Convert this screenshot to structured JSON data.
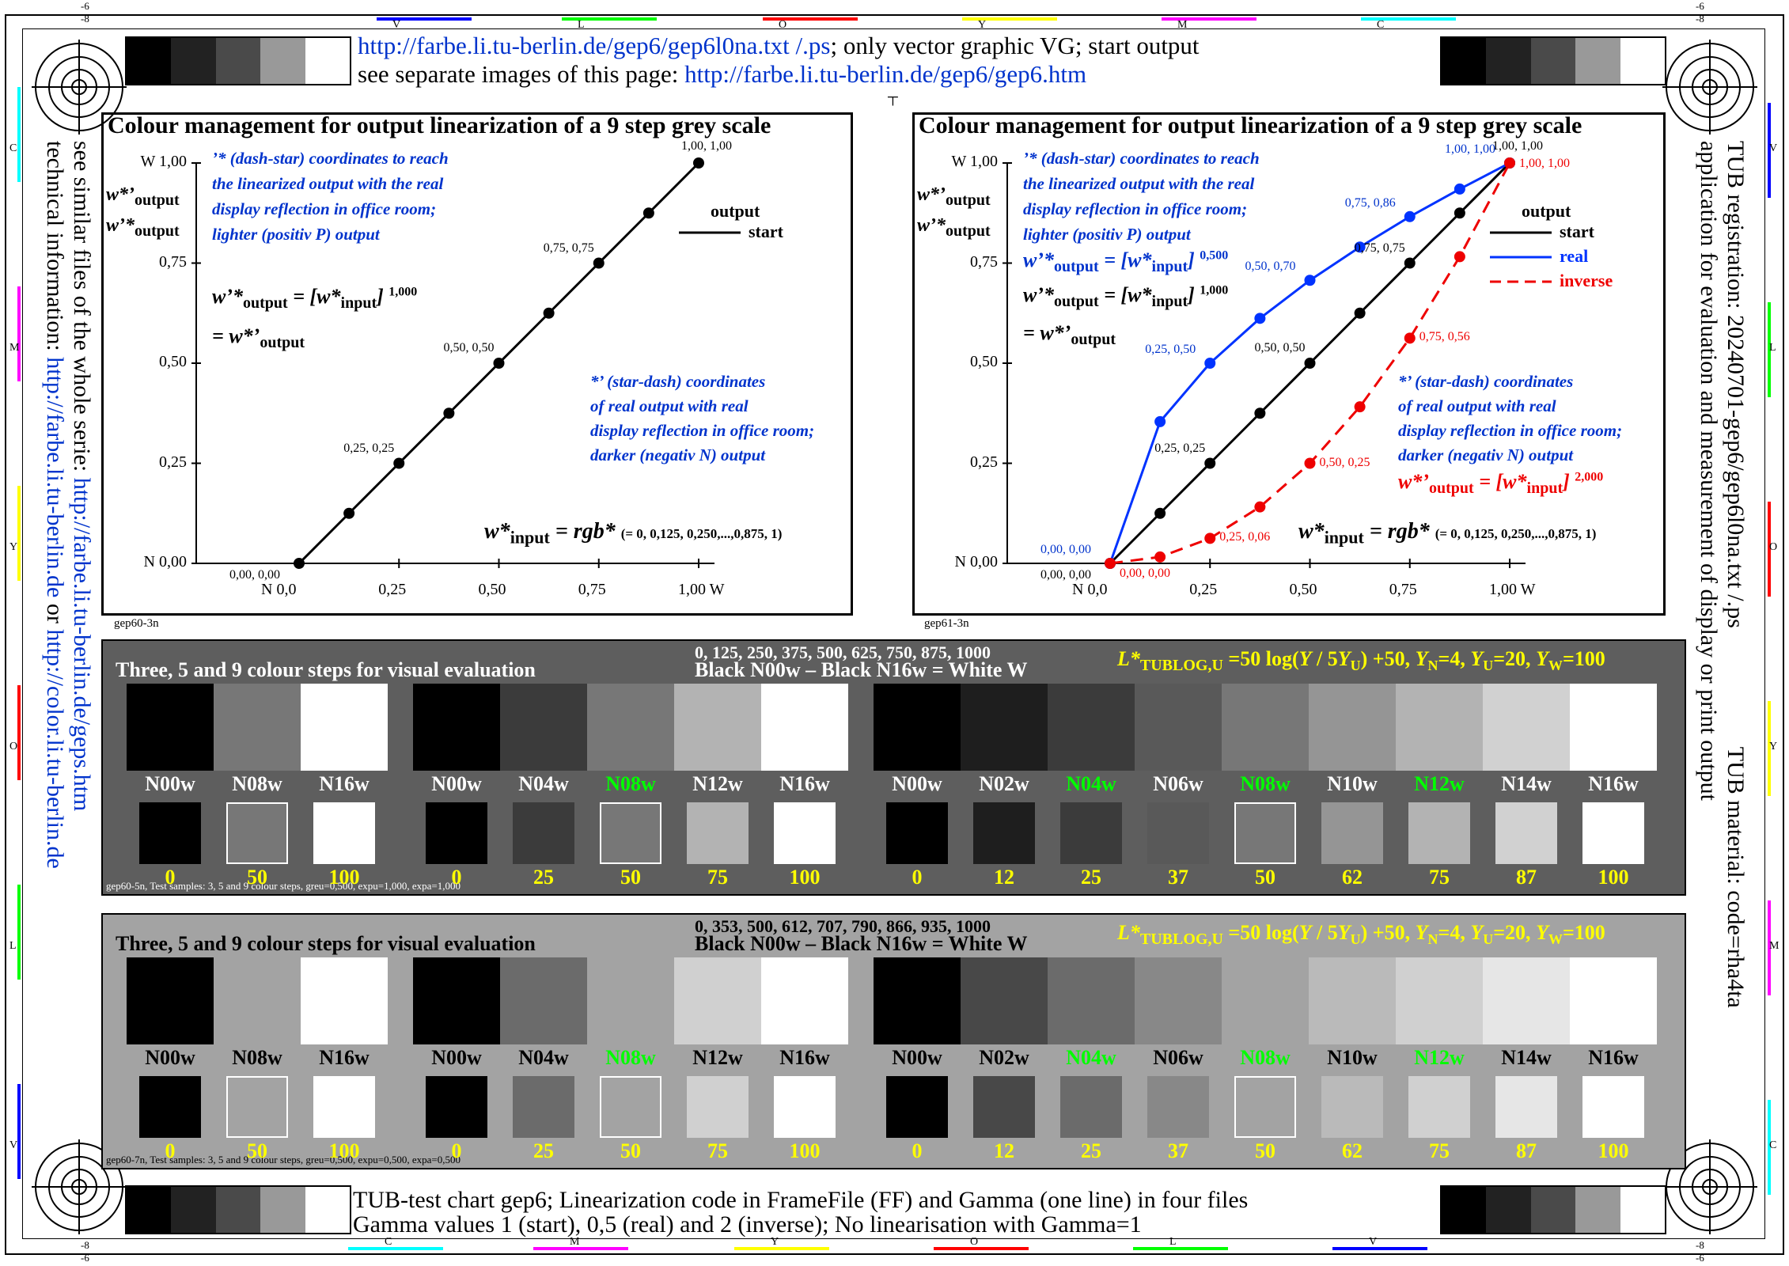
{
  "header": {
    "url_line_link": "http://farbe.li.tu-berlin.de/gep6/gep6l0na.txt /.ps",
    "url_line_rest": "; only vector graphic VG; start output",
    "sep_line_prefix": "see separate images of this page: ",
    "sep_line_link": "http://farbe.li.tu-berlin.de/gep6/gep6.htm"
  },
  "edge_letters_top": [
    "V",
    "L",
    "O",
    "Y",
    "M",
    "C"
  ],
  "edge_letters_bottom": [
    "C",
    "M",
    "Y",
    "O",
    "L",
    "V"
  ],
  "edge_letters_left": [
    "C",
    "M",
    "Y",
    "O",
    "L",
    "V"
  ],
  "edge_letters_right": [
    "V",
    "L",
    "O",
    "Y",
    "M",
    "C"
  ],
  "corner_marks": {
    "tl_top": "-6",
    "tl_bot": "-8",
    "tr_top": "-6",
    "tr_bot": "-8",
    "bl_top": "-8",
    "bl_bot": "-6",
    "br_top": "-8",
    "br_bot": "-6"
  },
  "left_side": {
    "line1_prefix": "see similar files of the whole serie: ",
    "line1_link": "http://farbe.li.tu-berlin.de/geps.htm",
    "line2_prefix": "technical information: ",
    "line2_link1": "http://farbe.li.tu-berlin.de",
    "line2_mid": " or ",
    "line2_link2": "http://color.li.tu-berlin.de"
  },
  "right_side": {
    "line1a": "TUB registration: 20240701-gep6/gep6l0na.txt /.ps",
    "line1b": "TUB material: code=rha4ta",
    "line2": "application for evaluation and measurement of display or print output"
  },
  "chart_data": [
    {
      "type": "line",
      "title": "Colour management for output linearization of a 9 step grey scale",
      "ylabel_top": "W 1,00",
      "y_ticks": [
        "N 0,00",
        "0,25",
        "0,50",
        "0,75",
        "W 1,00"
      ],
      "x_ticks": [
        "N  0,0",
        "0,25",
        "0,50",
        "0,75",
        "1,00  W"
      ],
      "xlim": [
        0,
        1
      ],
      "ylim": [
        0,
        1
      ],
      "series": [
        {
          "name": "start",
          "color": "#000000",
          "dash": false,
          "x": [
            0,
            0.125,
            0.25,
            0.375,
            0.5,
            0.625,
            0.75,
            0.875,
            1
          ],
          "y": [
            0,
            0.125,
            0.25,
            0.375,
            0.5,
            0.625,
            0.75,
            0.875,
            1
          ]
        }
      ],
      "point_labels": [
        {
          "x": 0,
          "y": 0,
          "text": "0,00, 0,00",
          "color": "#000000"
        },
        {
          "x": 0.25,
          "y": 0.25,
          "text": "0,25, 0,25",
          "color": "#000000"
        },
        {
          "x": 0.5,
          "y": 0.5,
          "text": "0,50, 0,50",
          "color": "#000000"
        },
        {
          "x": 0.75,
          "y": 0.75,
          "text": "0,75, 0,75",
          "color": "#000000"
        },
        {
          "x": 1,
          "y": 1,
          "text": "1,00, 1,00",
          "color": "#000000"
        }
      ],
      "legend_title": "output",
      "legend": [
        {
          "name": "start",
          "color": "#000000",
          "dash": false
        }
      ],
      "blue_note_top": [
        "’* (dash-star) coordinates to reach",
        "the linearized output with the real",
        "display reflection in office room;",
        "lighter (positiv P) output"
      ],
      "blue_note_bottom": [
        "*’ (star-dash) coordinates",
        "of real output with real",
        "display reflection in office room;",
        "darker (negativ N) output"
      ],
      "formula_black_exp": "1,000",
      "formula_blue_exp": "",
      "formula_red_exp": "",
      "xinput_formula_tail": "(= 0, 0,125, 0,250,...,0,875, 1)",
      "footer_code": "gep60-3n"
    },
    {
      "type": "line",
      "title": "Colour management for output linearization of a 9 step grey scale",
      "ylabel_top": "W 1,00",
      "y_ticks": [
        "N 0,00",
        "0,25",
        "0,50",
        "0,75",
        "W 1,00"
      ],
      "x_ticks": [
        "N  0,0",
        "0,25",
        "0,50",
        "0,75",
        "1,00  W"
      ],
      "xlim": [
        0,
        1
      ],
      "ylim": [
        0,
        1
      ],
      "series": [
        {
          "name": "start",
          "color": "#000000",
          "dash": false,
          "x": [
            0,
            0.125,
            0.25,
            0.375,
            0.5,
            0.625,
            0.75,
            0.875,
            1
          ],
          "y": [
            0,
            0.125,
            0.25,
            0.375,
            0.5,
            0.625,
            0.75,
            0.875,
            1
          ]
        },
        {
          "name": "real",
          "color": "#0033ff",
          "dash": false,
          "x": [
            0,
            0.125,
            0.25,
            0.375,
            0.5,
            0.625,
            0.75,
            0.875,
            1
          ],
          "y": [
            0,
            0.354,
            0.5,
            0.612,
            0.707,
            0.79,
            0.866,
            0.935,
            1
          ]
        },
        {
          "name": "inverse",
          "color": "#ee0000",
          "dash": true,
          "x": [
            0,
            0.125,
            0.25,
            0.375,
            0.5,
            0.625,
            0.75,
            0.875,
            1
          ],
          "y": [
            0,
            0.016,
            0.0625,
            0.141,
            0.25,
            0.391,
            0.5625,
            0.766,
            1
          ]
        }
      ],
      "point_labels": [
        {
          "x": 0,
          "y": 0,
          "text": "0,00, 0,00",
          "color": "#000000"
        },
        {
          "x": 0.25,
          "y": 0.25,
          "text": "0,25, 0,25",
          "color": "#000000"
        },
        {
          "x": 0.5,
          "y": 0.5,
          "text": "0,50, 0,50",
          "color": "#000000"
        },
        {
          "x": 0.75,
          "y": 0.75,
          "text": "0,75, 0,75",
          "color": "#000000"
        },
        {
          "x": 1,
          "y": 1,
          "text": "1,00, 1,00",
          "color": "#000000"
        },
        {
          "x": 0,
          "y": 0,
          "text": "0,00, 0,00",
          "color": "#0033cc"
        },
        {
          "x": 0.25,
          "y": 0.5,
          "text": "0,25, 0,50",
          "color": "#0033cc"
        },
        {
          "x": 0.5,
          "y": 0.707,
          "text": "0,50, 0,70",
          "color": "#0033cc"
        },
        {
          "x": 0.75,
          "y": 0.866,
          "text": "0,75, 0,86",
          "color": "#0033cc"
        },
        {
          "x": 1,
          "y": 1,
          "text": "1,00, 1,00",
          "color": "#0033cc"
        },
        {
          "x": 0,
          "y": 0,
          "text": "0,00, 0,00",
          "color": "#ee0000"
        },
        {
          "x": 0.25,
          "y": 0.0625,
          "text": "0,25, 0,06",
          "color": "#ee0000"
        },
        {
          "x": 0.5,
          "y": 0.25,
          "text": "0,50, 0,25",
          "color": "#ee0000"
        },
        {
          "x": 0.75,
          "y": 0.5625,
          "text": "0,75, 0,56",
          "color": "#ee0000"
        },
        {
          "x": 1,
          "y": 1,
          "text": "1,00, 1,00",
          "color": "#ee0000"
        }
      ],
      "legend_title": "output",
      "legend": [
        {
          "name": "start",
          "color": "#000000",
          "dash": false
        },
        {
          "name": "real",
          "color": "#0033ff",
          "dash": false
        },
        {
          "name": "inverse",
          "color": "#ee0000",
          "dash": true
        }
      ],
      "blue_note_top": [
        "’* (dash-star) coordinates to reach",
        "the linearized output with the real",
        "display reflection in office room;",
        "lighter (positiv P) output"
      ],
      "blue_note_bottom": [
        "*’ (star-dash) coordinates",
        "of real output with real",
        "display reflection in office room;",
        "darker (negativ N) output"
      ],
      "formula_black_exp": "1,000",
      "formula_blue_exp": "0,500",
      "formula_red_exp": "2,000",
      "xinput_formula_tail": "(= 0, 0,125, 0,250,...,0,875, 1)",
      "footer_code": "gep61-3n"
    }
  ],
  "panels": [
    {
      "bg": "#5e5e5e",
      "title": "Three, 5 and 9 colour steps for visual evaluation",
      "series_line": "0, 125, 250, 375, 500, 625, 750, 875, 1000",
      "black_white": "Black N00w – Black N16w = White W",
      "footer": "gep60-5n, Test samples: 3, 5 and 9 colour steps, greu=0,500, expu=1,000, expa=1,000",
      "groups": [
        {
          "big": [
            "#000000",
            "#777777",
            "#ffffff"
          ],
          "small": [
            "#000000",
            "#777777",
            "#ffffff"
          ],
          "labels": [
            "N00w",
            "N08w",
            "N16w"
          ],
          "label_colors": [
            "#ffffff",
            "#ffffff",
            "#ffffff"
          ],
          "nums": [
            "0",
            "50",
            "100"
          ]
        },
        {
          "big": [
            "#000000",
            "#3b3b3b",
            "#777777",
            "#b3b3b3",
            "#ffffff"
          ],
          "small": [
            "#000000",
            "#3b3b3b",
            "#777777",
            "#b3b3b3",
            "#ffffff"
          ],
          "labels": [
            "N00w",
            "N04w",
            "N08w",
            "N12w",
            "N16w"
          ],
          "label_colors": [
            "#ffffff",
            "#ffffff",
            "#00ff00",
            "#ffffff",
            "#ffffff"
          ],
          "nums": [
            "0",
            "25",
            "50",
            "75",
            "100"
          ]
        },
        {
          "big": [
            "#000000",
            "#1e1e1e",
            "#3b3b3b",
            "#595959",
            "#777777",
            "#959595",
            "#b3b3b3",
            "#d1d1d1",
            "#ffffff"
          ],
          "small": [
            "#000000",
            "#1e1e1e",
            "#3b3b3b",
            "#595959",
            "#777777",
            "#959595",
            "#b3b3b3",
            "#d1d1d1",
            "#ffffff"
          ],
          "labels": [
            "N00w",
            "N02w",
            "N04w",
            "N06w",
            "N08w",
            "N10w",
            "N12w",
            "N14w",
            "N16w"
          ],
          "label_colors": [
            "#ffffff",
            "#ffffff",
            "#00ff00",
            "#ffffff",
            "#00ff00",
            "#ffffff",
            "#00ff00",
            "#ffffff",
            "#ffffff"
          ],
          "nums": [
            "0",
            "12",
            "25",
            "37",
            "50",
            "62",
            "75",
            "87",
            "100"
          ]
        }
      ]
    },
    {
      "bg": "#a3a3a3",
      "title": "Three, 5 and 9 colour steps for visual evaluation",
      "series_line": "0, 353, 500, 612, 707, 790, 866, 935, 1000",
      "black_white": "Black N00w – Black N16w = White W",
      "footer": "gep60-7n, Test samples: 3, 5 and 9 colour steps, greu=0,500, expu=0,500, expa=0,500",
      "groups": [
        {
          "big": [
            "#000000",
            "#a3a3a3",
            "#ffffff"
          ],
          "small": [
            "#000000",
            "#a3a3a3",
            "#ffffff"
          ],
          "labels": [
            "N00w",
            "N08w",
            "N16w"
          ],
          "label_colors": [
            "#000000",
            "#000000",
            "#000000"
          ],
          "nums": [
            "0",
            "50",
            "100"
          ]
        },
        {
          "big": [
            "#000000",
            "#6b6b6b",
            "#a3a3a3",
            "#d0d0d0",
            "#ffffff"
          ],
          "small": [
            "#000000",
            "#6b6b6b",
            "#a3a3a3",
            "#d0d0d0",
            "#ffffff"
          ],
          "labels": [
            "N00w",
            "N04w",
            "N08w",
            "N12w",
            "N16w"
          ],
          "label_colors": [
            "#000000",
            "#000000",
            "#00ff00",
            "#000000",
            "#000000"
          ],
          "nums": [
            "0",
            "25",
            "50",
            "75",
            "100"
          ]
        },
        {
          "big": [
            "#000000",
            "#484848",
            "#6b6b6b",
            "#888888",
            "#a3a3a3",
            "#bababa",
            "#d0d0d0",
            "#e6e6e6",
            "#ffffff"
          ],
          "small": [
            "#000000",
            "#484848",
            "#6b6b6b",
            "#888888",
            "#a3a3a3",
            "#bababa",
            "#d0d0d0",
            "#e6e6e6",
            "#ffffff"
          ],
          "labels": [
            "N00w",
            "N02w",
            "N04w",
            "N06w",
            "N08w",
            "N10w",
            "N12w",
            "N14w",
            "N16w"
          ],
          "label_colors": [
            "#000000",
            "#000000",
            "#00ff00",
            "#000000",
            "#00ff00",
            "#000000",
            "#00ff00",
            "#000000",
            "#000000"
          ],
          "nums": [
            "0",
            "12",
            "25",
            "37",
            "50",
            "62",
            "75",
            "87",
            "100"
          ]
        }
      ]
    }
  ],
  "ltub_formula": {
    "head": "L*",
    "sub": "TUBLOG,U",
    "rest": " =50 log(Y / 5Y",
    "sub2": "U",
    "rest2": ") +50, Y",
    "sub3": "N",
    "rest3": "=4, Y",
    "sub4": "U",
    "rest4": "=20, Y",
    "sub5": "W",
    "rest5": "=100"
  },
  "footer": {
    "line1": "TUB-test chart gep6; Linearization code in FrameFile (FF) and Gamma (one line) in four files",
    "line2": "Gamma values 1 (start), 0,5 (real) and 2 (inverse); No linearisation with Gamma=1"
  },
  "grey_bar": [
    "#000000",
    "#222222",
    "#4a4a4a",
    "#999999",
    "#ffffff"
  ]
}
